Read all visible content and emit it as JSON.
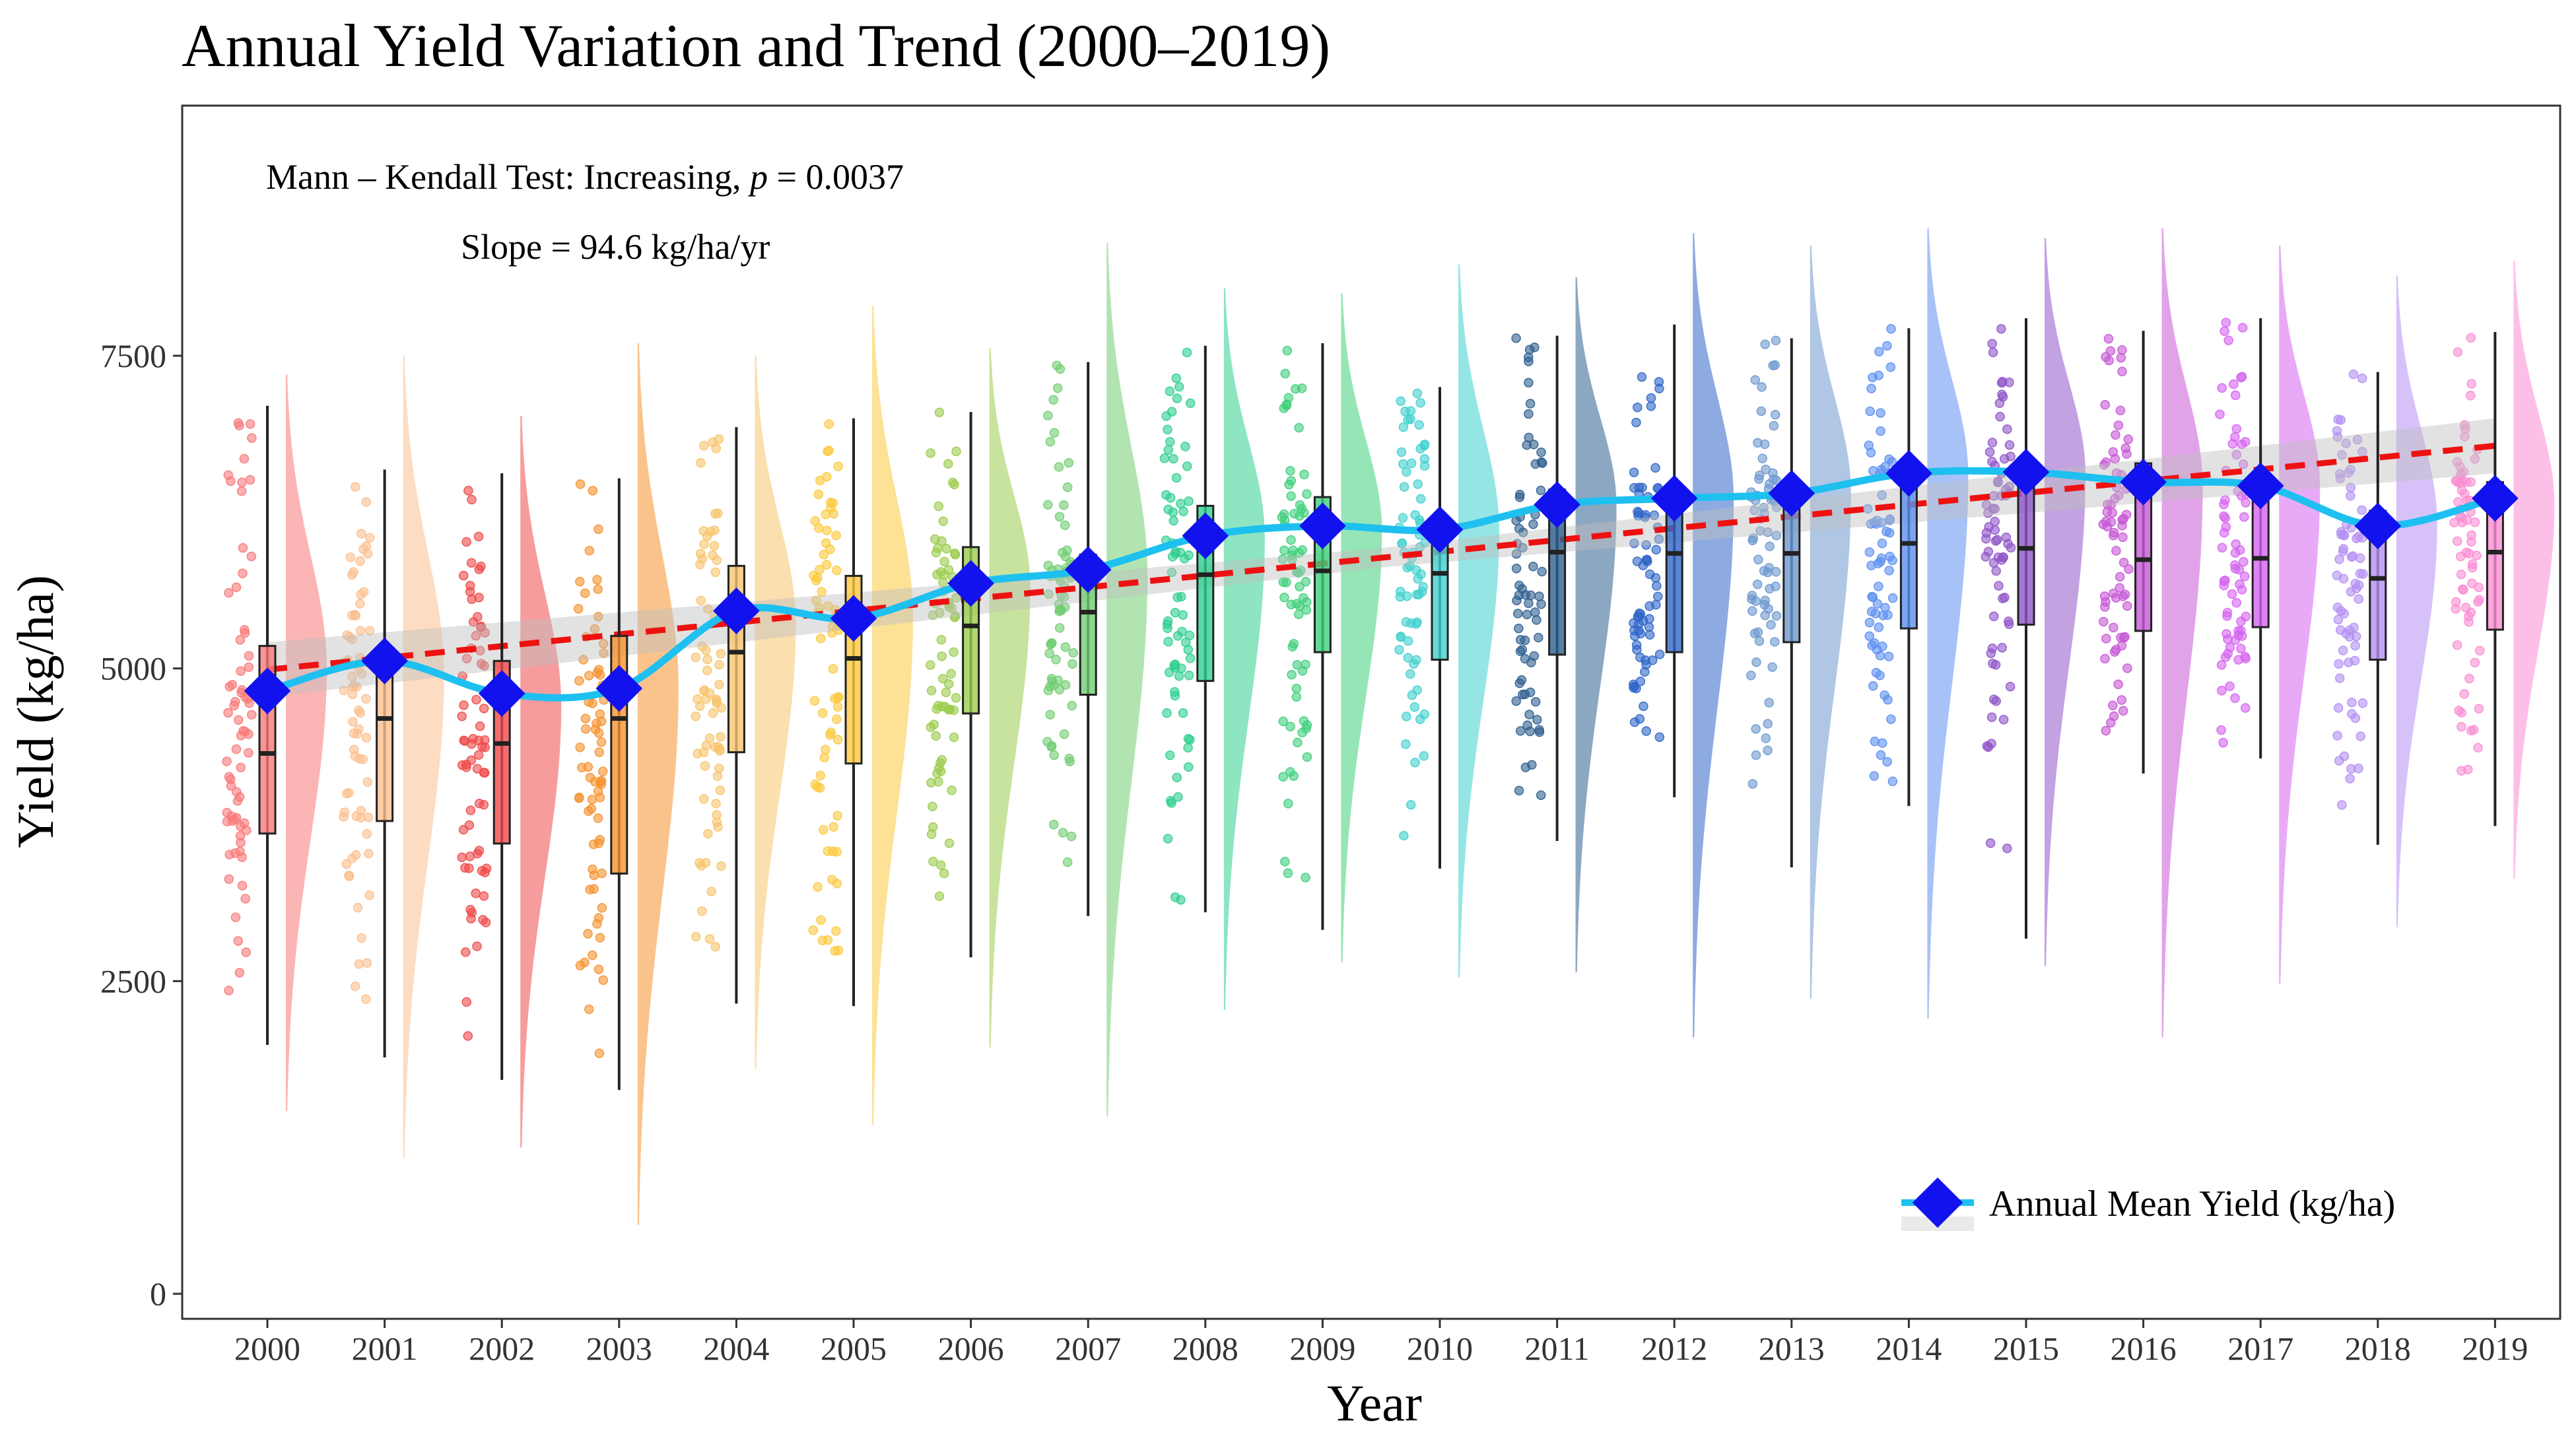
{
  "chart_data": {
    "type": "raincloud",
    "title": "Annual Yield Variation and Trend (2000–2019)",
    "xlabel": "Year",
    "ylabel": "Yield (kg/ha)",
    "ylim": [
      -200,
      9500
    ],
    "yticks": [
      0,
      2500,
      5000,
      7500
    ],
    "years": [
      2000,
      2001,
      2002,
      2003,
      2004,
      2005,
      2006,
      2007,
      2008,
      2009,
      2010,
      2011,
      2012,
      2013,
      2014,
      2015,
      2016,
      2017,
      2018,
      2019
    ],
    "year_labels": [
      "2000",
      "2001",
      "2002",
      "2003",
      "2004",
      "2005",
      "2006",
      "2007",
      "2008",
      "2009",
      "2010",
      "2011",
      "2012",
      "2013",
      "2014",
      "2015",
      "2016",
      "2017",
      "2018",
      "2019"
    ],
    "mean": [
      4820,
      5060,
      4800,
      4840,
      5460,
      5400,
      5680,
      5790,
      6060,
      6140,
      6110,
      6310,
      6360,
      6400,
      6560,
      6570,
      6490,
      6460,
      6140,
      6360
    ],
    "median": [
      4320,
      4600,
      4400,
      4600,
      5130,
      5080,
      5340,
      5450,
      5750,
      5780,
      5760,
      5930,
      5920,
      5920,
      6000,
      5960,
      5870,
      5880,
      5720,
      5930
    ],
    "q1": [
      3680,
      3780,
      3600,
      3360,
      4330,
      4240,
      4640,
      4790,
      4900,
      5130,
      5070,
      5110,
      5130,
      5210,
      5320,
      5350,
      5300,
      5330,
      5070,
      5310
    ],
    "q3": [
      5180,
      5120,
      5060,
      5260,
      5820,
      5740,
      5970,
      5910,
      6300,
      6370,
      6200,
      6430,
      6420,
      6450,
      6560,
      6480,
      6640,
      6530,
      6260,
      6490
    ],
    "whisker_low": [
      1990,
      1890,
      1710,
      1630,
      2320,
      2300,
      2690,
      3020,
      3050,
      2910,
      3400,
      3620,
      3970,
      3410,
      3900,
      2840,
      4160,
      4280,
      3590,
      3740
    ],
    "whisker_high": [
      7100,
      6590,
      6560,
      6520,
      6930,
      7000,
      7050,
      7450,
      7580,
      7600,
      7250,
      7660,
      7750,
      7640,
      7720,
      7800,
      7700,
      7800,
      7370,
      7690
    ],
    "density_min": [
      1460,
      1080,
      1170,
      550,
      1800,
      1350,
      1970,
      1420,
      2270,
      2650,
      2530,
      2570,
      2050,
      2360,
      2200,
      2620,
      2050,
      2480,
      2930,
      3320
    ],
    "density_max": [
      7350,
      7500,
      7020,
      7600,
      7500,
      7900,
      7560,
      8400,
      8040,
      8000,
      8230,
      8130,
      8480,
      8380,
      8520,
      8440,
      8520,
      8380,
      8140,
      8260
    ],
    "density_mode": [
      5000,
      4950,
      4700,
      4850,
      5350,
      5400,
      5650,
      5750,
      6050,
      6100,
      6100,
      6300,
      6350,
      6400,
      6550,
      6550,
      6450,
      6450,
      6150,
      6300
    ],
    "colors": [
      "#f87979",
      "#fbbf8f",
      "#ef4a4a",
      "#f5922e",
      "#f7c46c",
      "#fcc93e",
      "#9bcc4c",
      "#72cd72",
      "#2fcf8f",
      "#3fcf7c",
      "#40d0cf",
      "#2e5f90",
      "#2f66c8",
      "#6d98cf",
      "#5d8ff0",
      "#8f55c8",
      "#c658d6",
      "#d664f0",
      "#b48ff3",
      "#fa8dd3"
    ],
    "trend": {
      "start": 4990,
      "end": 6780,
      "band": 220,
      "color": "#ee1111"
    },
    "mean_line_color": "#1ec0f0",
    "mean_marker_color": "#1212ee",
    "annotation_line1": "Mann – Kendall Test: Increasing, ",
    "annotation_p_symbol": "p",
    "annotation_p_value": " = 0.0037",
    "annotation_line2": "Slope = 94.6 kg/ha/yr",
    "legend": {
      "label": "Annual Mean Yield (kg/ha)",
      "position": "bottom-right"
    }
  }
}
